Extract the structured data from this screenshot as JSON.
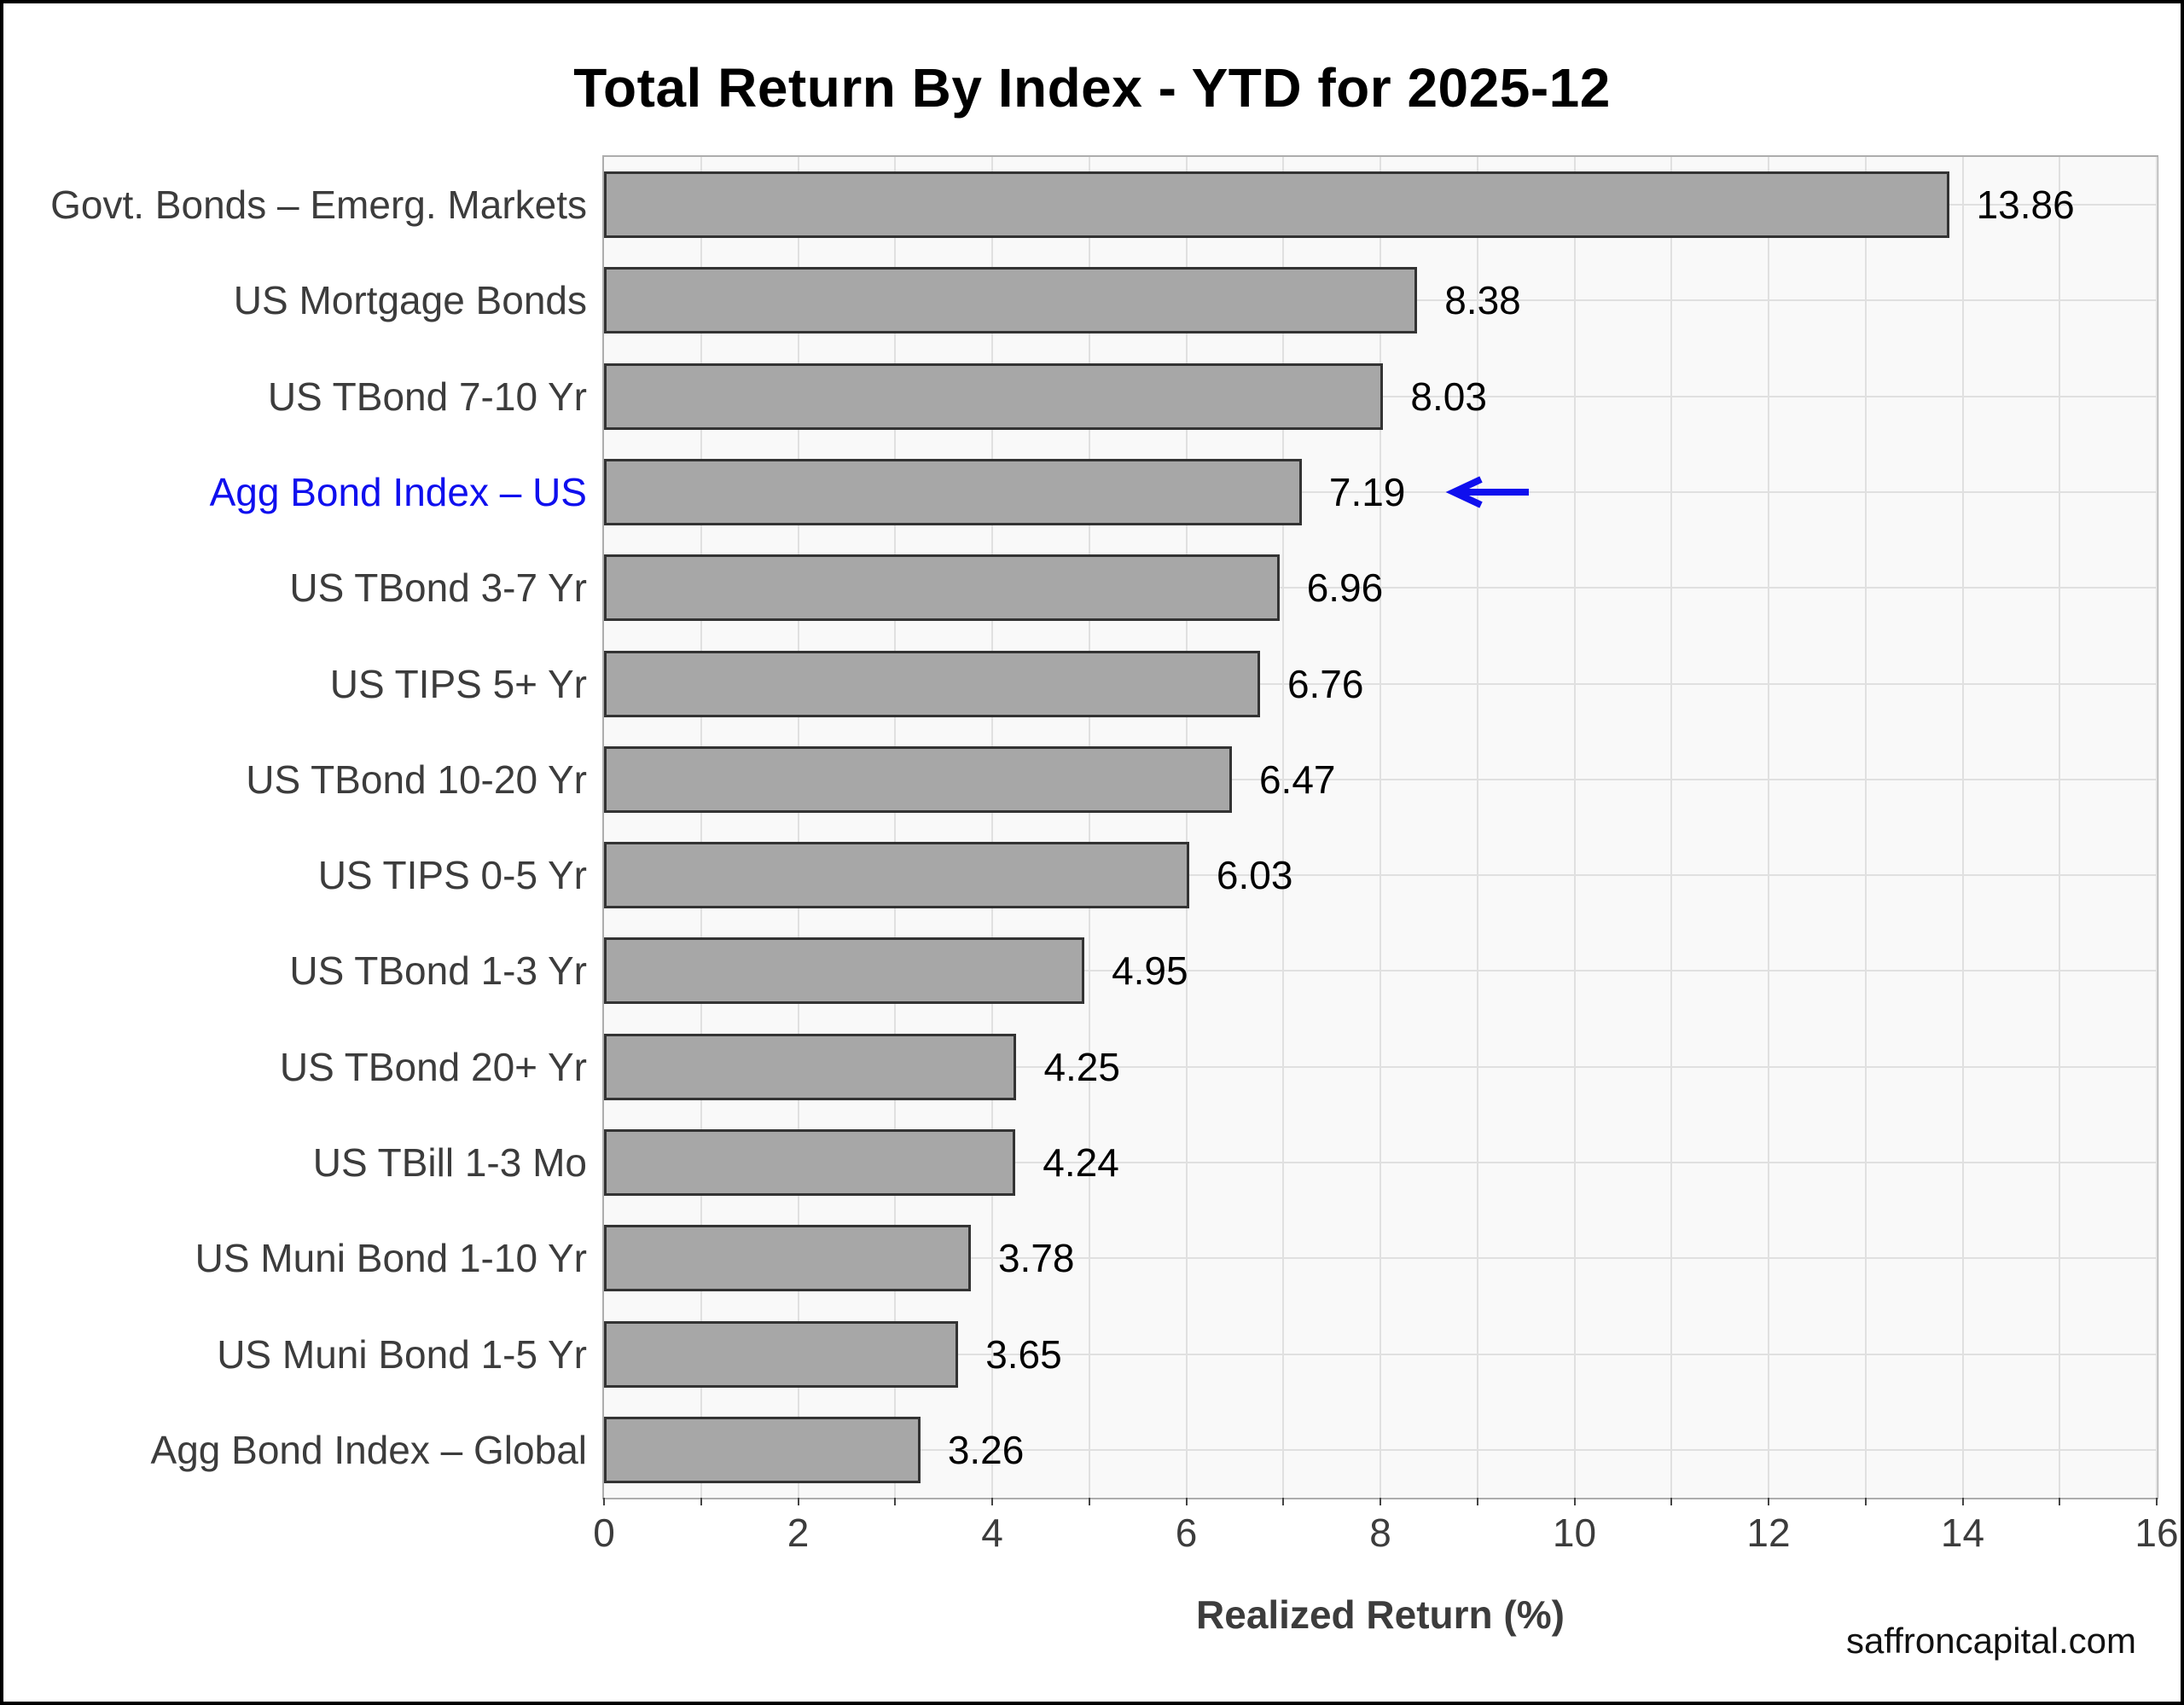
{
  "title": "Total Return By Index - YTD for 2025-12",
  "watermark": "saffroncapital.com",
  "chart_data": {
    "type": "bar",
    "orientation": "horizontal",
    "title": "Total Return By Index - YTD for 2025-12",
    "xlabel": "Realized Return (%)",
    "xlim": [
      0,
      16
    ],
    "xticks": [
      0,
      2,
      4,
      6,
      8,
      10,
      12,
      14,
      16
    ],
    "minor_grid_step": 1,
    "grid": true,
    "legend": "none",
    "categories": [
      "Govt. Bonds – Emerg. Markets",
      "US Mortgage Bonds",
      "US TBond 7-10 Yr",
      "Agg Bond Index – US",
      "US TBond 3-7 Yr",
      "US TIPS 5+ Yr",
      "US TBond 10-20 Yr",
      "US TIPS 0-5 Yr",
      "US TBond 1-3 Yr",
      "US TBond 20+ Yr",
      "US TBill 1-3 Mo",
      "US Muni Bond 1-10 Yr",
      "US Muni Bond 1-5 Yr",
      "Agg Bond Index – Global"
    ],
    "values": [
      13.86,
      8.38,
      8.03,
      7.19,
      6.96,
      6.76,
      6.47,
      6.03,
      4.95,
      4.25,
      4.24,
      3.78,
      3.65,
      3.26
    ],
    "value_labels": [
      "13.86",
      "8.38",
      "8.03",
      "7.19",
      "6.96",
      "6.76",
      "6.47",
      "6.03",
      "4.95",
      "4.25",
      "4.24",
      "3.78",
      "3.65",
      "3.26"
    ],
    "highlight": {
      "index": 3,
      "category": "Agg Bond Index – US",
      "marker": "left-arrow"
    },
    "colors": {
      "bar_fill": "#A7A7A7",
      "bar_border": "#333333",
      "plot_background": "#F9F9F9",
      "plot_border": "#ADADAD",
      "gridline": "#E0E0E0",
      "tick_mark": "#444444",
      "axis_text": "#3C3C3C",
      "category_text": "#3C3C3C",
      "value_text": "#000000",
      "title_text": "#000000",
      "highlight": "#0F0FEE"
    }
  }
}
